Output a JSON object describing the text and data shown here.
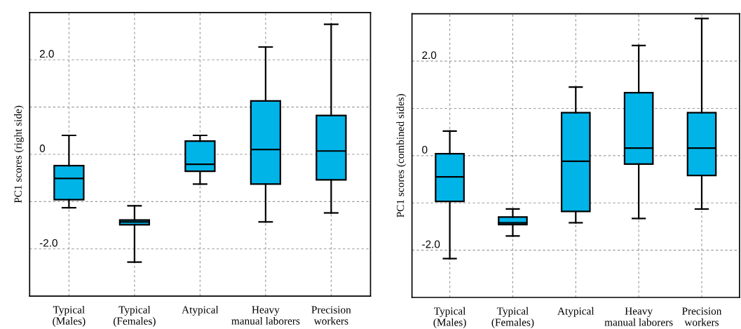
{
  "chart_data": [
    {
      "type": "box",
      "ylabel": "PC1 scores (right side)",
      "categories": [
        "Typical\n(Males)",
        "Typical\n(Females)",
        "Atypical",
        "Heavy\nmanual laborers",
        "Precision\nworkers"
      ],
      "color": "#00b4e8",
      "ylim": [
        -3,
        3
      ],
      "yticks": [
        {
          "value": -2,
          "label": "-2.0"
        },
        {
          "value": -1,
          "label": null
        },
        0,
        {
          "value": 1,
          "label": null
        },
        {
          "value": 2,
          "label": "2.0"
        }
      ],
      "grid": true,
      "boxes": [
        {
          "low": -1.13,
          "q1": -0.96,
          "median": -0.51,
          "q3": -0.24,
          "high": 0.4
        },
        {
          "low": -2.28,
          "q1": -1.49,
          "median": -1.43,
          "q3": -1.39,
          "high": -1.09
        },
        {
          "low": -0.63,
          "q1": -0.36,
          "median": -0.21,
          "q3": 0.28,
          "high": 0.4
        },
        {
          "low": -1.43,
          "q1": -0.63,
          "median": 0.1,
          "q3": 1.13,
          "high": 2.27
        },
        {
          "low": -1.24,
          "q1": -0.54,
          "median": 0.07,
          "q3": 0.82,
          "high": 2.75
        }
      ]
    },
    {
      "type": "box",
      "ylabel": "PC1 scores (combined sides)",
      "categories": [
        "Typical\n(Males)",
        "Typical\n(Females)",
        "Atypical",
        "Heavy\nmanual laborers",
        "Precision\nworkers"
      ],
      "color": "#00b4e8",
      "ylim": [
        -3,
        3
      ],
      "yticks": [
        {
          "value": -2,
          "label": "-2.0"
        },
        {
          "value": -1,
          "label": null
        },
        0,
        {
          "value": 1,
          "label": null
        },
        {
          "value": 2,
          "label": "2.0"
        }
      ],
      "grid": true,
      "boxes": [
        {
          "low": -2.18,
          "q1": -0.97,
          "median": -0.45,
          "q3": 0.04,
          "high": 0.52
        },
        {
          "low": -1.7,
          "q1": -1.46,
          "median": -1.42,
          "q3": -1.3,
          "high": -1.13
        },
        {
          "low": -1.42,
          "q1": -1.18,
          "median": -0.12,
          "q3": 0.91,
          "high": 1.45
        },
        {
          "low": -1.33,
          "q1": -0.18,
          "median": 0.16,
          "q3": 1.33,
          "high": 2.33
        },
        {
          "low": -1.13,
          "q1": -0.42,
          "median": 0.16,
          "q3": 0.91,
          "high": 2.9
        }
      ]
    }
  ]
}
